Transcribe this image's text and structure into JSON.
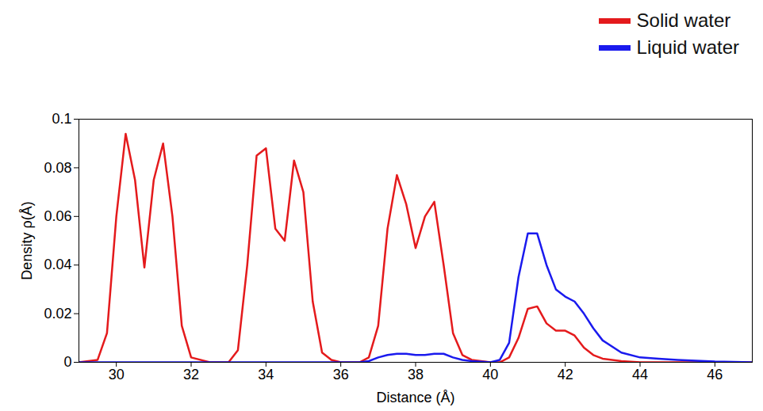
{
  "chart_data": {
    "type": "line",
    "x_label": "Distance (Å)",
    "y_label": "Density ρ(Å)",
    "xlim": [
      29,
      47
    ],
    "xticks": [
      30,
      32,
      34,
      36,
      38,
      40,
      42,
      44,
      46
    ],
    "ylim": [
      0,
      0.1
    ],
    "yticks": [
      0,
      0.02,
      0.04,
      0.06,
      0.08,
      0.1
    ],
    "legend": "top-right",
    "x": [
      29,
      29.5,
      29.75,
      30,
      30.25,
      30.5,
      30.75,
      31,
      31.25,
      31.5,
      31.75,
      32,
      32.5,
      33,
      33.25,
      33.5,
      33.75,
      34,
      34.25,
      34.5,
      34.75,
      35,
      35.25,
      35.5,
      35.75,
      36,
      36.5,
      36.75,
      37,
      37.25,
      37.5,
      37.75,
      38,
      38.25,
      38.5,
      38.75,
      39,
      39.25,
      39.5,
      40,
      40.25,
      40.5,
      40.75,
      41,
      41.25,
      41.5,
      41.75,
      42,
      42.25,
      42.5,
      42.75,
      43,
      43.5,
      44,
      44.5,
      45,
      46,
      47
    ],
    "series": [
      {
        "name": "Solid water",
        "color": "#e41a1c",
        "values": [
          0,
          0.001,
          0.012,
          0.06,
          0.094,
          0.075,
          0.039,
          0.075,
          0.09,
          0.06,
          0.015,
          0.002,
          0,
          0,
          0.005,
          0.04,
          0.085,
          0.088,
          0.055,
          0.05,
          0.083,
          0.07,
          0.025,
          0.004,
          0.001,
          0,
          0,
          0.002,
          0.015,
          0.055,
          0.077,
          0.065,
          0.047,
          0.06,
          0.066,
          0.04,
          0.012,
          0.003,
          0.001,
          0,
          0,
          0.002,
          0.01,
          0.022,
          0.023,
          0.016,
          0.013,
          0.013,
          0.011,
          0.006,
          0.003,
          0.0015,
          0.0005,
          0,
          0,
          0,
          0,
          0
        ]
      },
      {
        "name": "Liquid water",
        "color": "#1a1aee",
        "values": [
          0,
          0,
          0,
          0,
          0,
          0,
          0,
          0,
          0,
          0,
          0,
          0,
          0,
          0,
          0,
          0,
          0,
          0,
          0,
          0,
          0,
          0,
          0,
          0,
          0,
          0,
          0,
          0.0005,
          0.002,
          0.003,
          0.0035,
          0.0035,
          0.003,
          0.003,
          0.0035,
          0.0035,
          0.002,
          0.001,
          0.0005,
          0,
          0.001,
          0.008,
          0.035,
          0.053,
          0.053,
          0.04,
          0.03,
          0.027,
          0.025,
          0.02,
          0.014,
          0.009,
          0.004,
          0.002,
          0.0015,
          0.001,
          0.0003,
          0
        ]
      }
    ]
  }
}
